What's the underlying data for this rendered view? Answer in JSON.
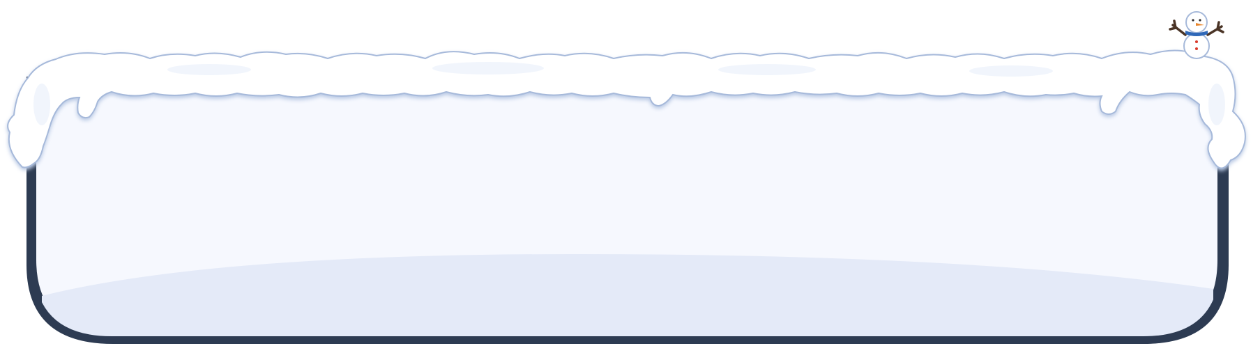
{
  "panel": {
    "frame_color": "#2d3b52",
    "fill_color": "#f6f8fe",
    "floor_color": "#e4eaf8"
  },
  "decorations": {
    "snow_color": "#ffffff",
    "snow_shadow_color": "#b9c9e4",
    "snow_outline_color": "#a6b9da",
    "snowman": {
      "scarf_color": "#2f68b8",
      "nose_color": "#e8842a",
      "button_color": "#d93a2b",
      "arm_color": "#4a3426"
    }
  }
}
